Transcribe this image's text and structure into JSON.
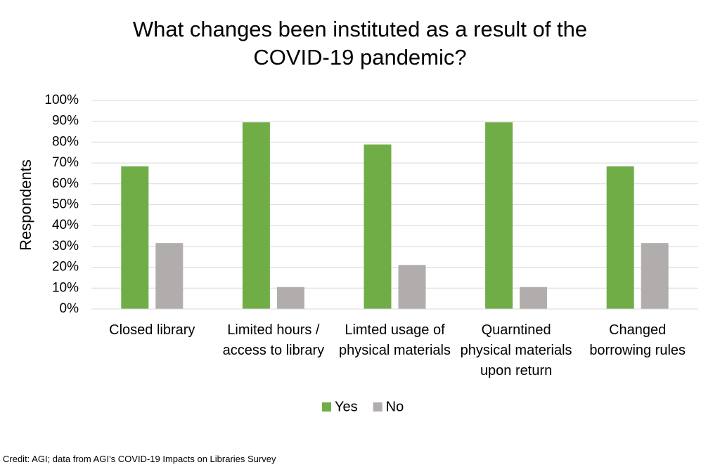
{
  "chart_data": {
    "type": "bar",
    "title": "What changes been instituted as a result of the COVID-19 pandemic?",
    "y_label": "Respondents",
    "categories": [
      "Closed library",
      "Limited hours / access to library",
      "Limted usage of physical materials",
      "Quarntined physical materials upon return",
      "Changed borrowing rules"
    ],
    "series": [
      {
        "name": "Yes",
        "color": "#70ad47",
        "values": [
          68.4,
          89.5,
          78.9,
          89.5,
          68.4
        ]
      },
      {
        "name": "No",
        "color": "#b2adad",
        "values": [
          31.6,
          10.5,
          21.1,
          10.5,
          31.6
        ]
      }
    ],
    "ylim": [
      0,
      100
    ],
    "yticks": [
      {
        "value": 0,
        "label": "0%"
      },
      {
        "value": 10,
        "label": "10%"
      },
      {
        "value": 20,
        "label": "20%"
      },
      {
        "value": 30,
        "label": "30%"
      },
      {
        "value": 40,
        "label": "40%"
      },
      {
        "value": 50,
        "label": "50%"
      },
      {
        "value": 60,
        "label": "60%"
      },
      {
        "value": 70,
        "label": "70%"
      },
      {
        "value": 80,
        "label": "80%"
      },
      {
        "value": 90,
        "label": "90%"
      },
      {
        "value": 100,
        "label": "100%"
      }
    ],
    "grid": true,
    "legend": "bottom",
    "credit": "Credit: AGI; data from AGI’s COVID-19 Impacts on Libraries Survey"
  }
}
